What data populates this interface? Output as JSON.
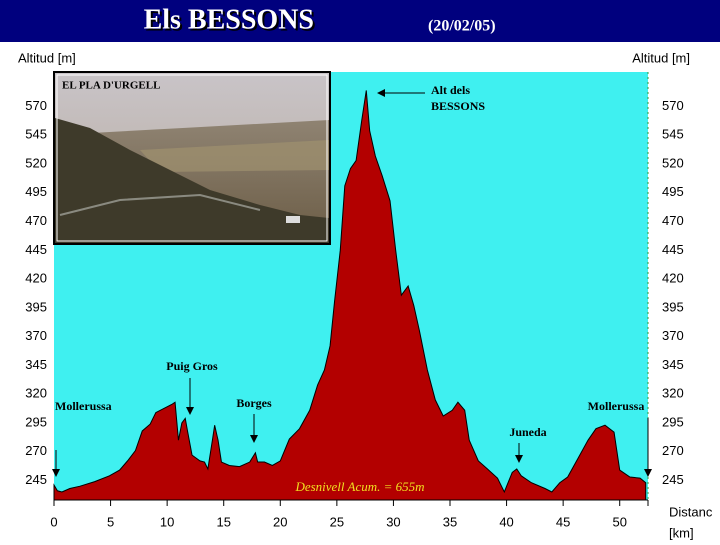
{
  "header": {
    "title": "Els BESSONS",
    "date": "(20/02/05)"
  },
  "inset": {
    "label": "EL PLA D'URGELL"
  },
  "chart_data": {
    "type": "area",
    "x": [
      0,
      0.3,
      0.7,
      1.4,
      2.3,
      3.6,
      4.9,
      5.8,
      6.5,
      7.2,
      7.8,
      8.5,
      9.0,
      9.8,
      10.4,
      10.7,
      11.0,
      11.3,
      11.6,
      11.8,
      12.2,
      12.9,
      13.3,
      13.6,
      14.0,
      14.2,
      14.5,
      14.8,
      15.5,
      16.4,
      17.3,
      17.8,
      18.0,
      18.6,
      19.3,
      20.0,
      20.8,
      21.7,
      22.6,
      23.3,
      23.9,
      24.4,
      24.8,
      25.3,
      25.7,
      26.2,
      26.7,
      27.2,
      27.6,
      27.9,
      28.4,
      29.0,
      29.7,
      30.2,
      30.7,
      31.3,
      31.8,
      32.3,
      33.0,
      33.7,
      34.4,
      35.2,
      35.7,
      36.3,
      36.7,
      37.5,
      38.3,
      39.2,
      39.8,
      40.5,
      40.9,
      41.3,
      42.2,
      43.4,
      44.0,
      44.7,
      45.4,
      46.3,
      47.2,
      47.9,
      48.7,
      49.5,
      50.0,
      50.9,
      51.8,
      52.3
    ],
    "values": [
      241,
      236,
      235,
      238,
      240,
      244,
      249,
      254,
      262,
      271,
      288,
      294,
      304,
      308,
      311,
      313,
      280,
      295,
      299,
      288,
      267,
      262,
      261,
      255,
      280,
      293,
      280,
      261,
      258,
      257,
      261,
      269,
      261,
      261,
      258,
      262,
      281,
      290,
      306,
      328,
      341,
      362,
      401,
      445,
      501,
      516,
      523,
      558,
      584,
      549,
      527,
      510,
      488,
      445,
      406,
      414,
      397,
      375,
      341,
      315,
      301,
      306,
      313,
      306,
      280,
      262,
      255,
      247,
      235,
      252,
      255,
      249,
      243,
      238,
      235,
      243,
      248,
      264,
      280,
      290,
      293,
      287,
      254,
      248,
      247,
      243
    ],
    "color": "#b30000",
    "xlim": [
      0,
      52.5
    ],
    "xticks": [
      0,
      5,
      10,
      15,
      20,
      25,
      30,
      35,
      40,
      45,
      50
    ],
    "ylim": [
      228,
      600
    ],
    "yticks": [
      245,
      270,
      295,
      320,
      345,
      370,
      395,
      420,
      445,
      470,
      495,
      520,
      545,
      570
    ],
    "y2lim": [
      228,
      600
    ],
    "y2ticks": [
      245,
      270,
      295,
      320,
      345,
      370,
      395,
      420,
      445,
      470,
      495,
      520,
      545,
      570
    ],
    "y_label": "Altitud [m]",
    "y2_label": "Altitud [m]",
    "x_label": [
      "Distanc",
      "[km]"
    ],
    "annotations": [
      [
        "Mollerussa"
      ],
      [
        "Puig Gros"
      ],
      [
        "Borges"
      ],
      [
        "Alt  dels",
        "BESSONS"
      ],
      [
        "Juneda"
      ],
      [
        "Mollerussa"
      ]
    ],
    "note": "Desnivell Acum. = 655m"
  }
}
